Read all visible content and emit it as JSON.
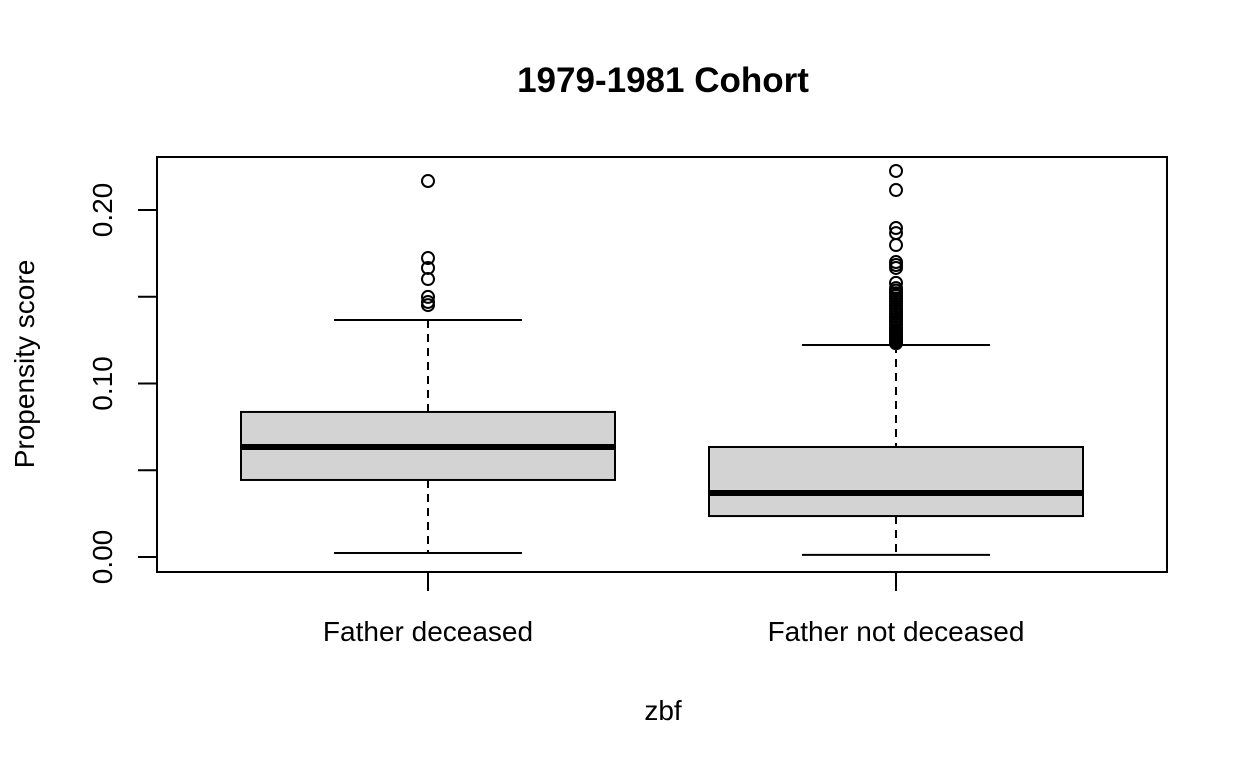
{
  "chart_data": {
    "type": "boxplot",
    "title": "1979-1981 Cohort",
    "xlabel": "zbf",
    "ylabel": "Propensity score",
    "ylim": [
      -0.0085,
      0.2305
    ],
    "yticks": [
      0.0,
      0.05,
      0.1,
      0.15,
      0.2
    ],
    "ytick_labels": [
      "0.00",
      "",
      "0.10",
      "",
      "0.20"
    ],
    "categories": [
      "Father deceased",
      "Father not deceased"
    ],
    "grid": false,
    "legend": null,
    "box_fill": "#d3d3d3",
    "series": [
      {
        "name": "Father deceased",
        "whisker_low": 0.0023,
        "q1": 0.0444,
        "median": 0.0634,
        "q3": 0.0836,
        "whisker_high": 0.1366,
        "outliers": [
          0.2167,
          0.1723,
          0.1666,
          0.1602,
          0.1499,
          0.147,
          0.1452
        ]
      },
      {
        "name": "Father not deceased",
        "whisker_low": 0.0012,
        "q1": 0.0236,
        "median": 0.0369,
        "q3": 0.0634,
        "whisker_high": 0.1222,
        "outliers": [
          0.2225,
          0.2115,
          0.1896,
          0.1867,
          0.1798,
          0.17,
          0.1683,
          0.1666,
          0.158,
          0.155,
          0.1535,
          0.152,
          0.1505,
          0.149,
          0.1475,
          0.146,
          0.1445,
          0.143,
          0.1415,
          0.14,
          0.1385,
          0.137,
          0.1355,
          0.134,
          0.1325,
          0.131,
          0.13,
          0.129,
          0.128,
          0.127,
          0.126,
          0.125,
          0.124,
          0.1232
        ]
      }
    ]
  }
}
